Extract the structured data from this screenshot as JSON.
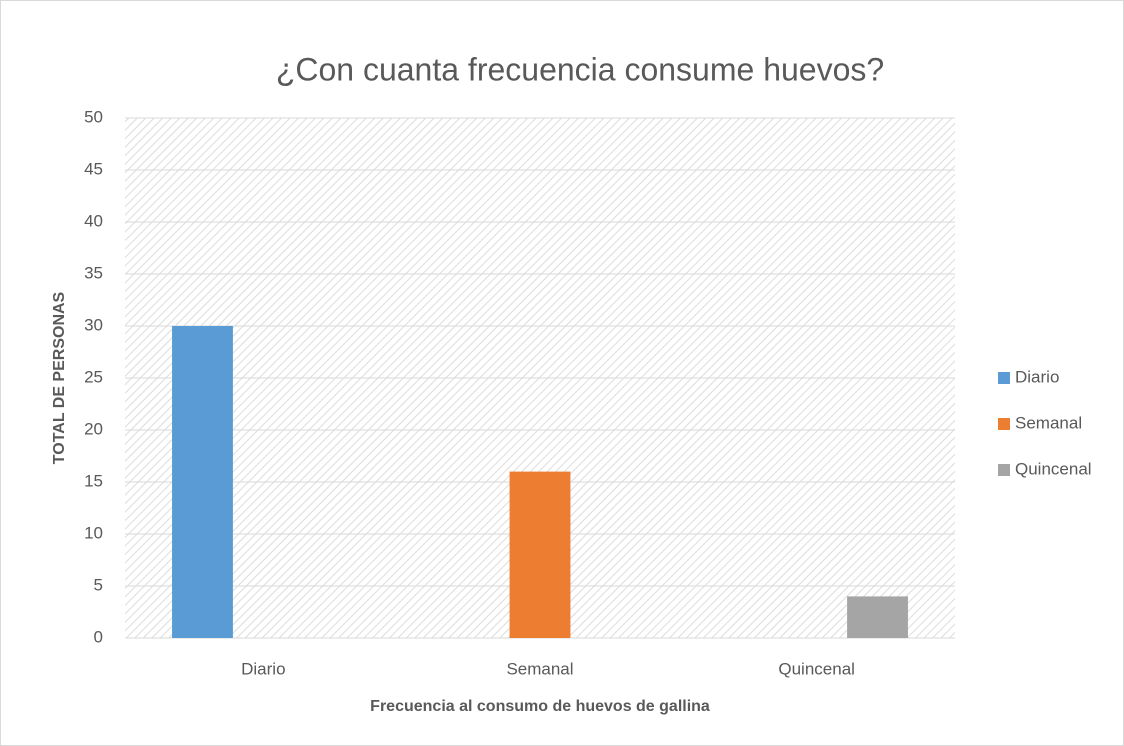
{
  "chart_data": {
    "type": "bar",
    "title": "¿Con cuanta frecuencia consume huevos?",
    "x_label": "Frecuencia al consumo de huevos de gallina",
    "y_label": "TOTAL DE PERSONAS",
    "categories": [
      "Diario",
      "Semanal",
      "Quincenal"
    ],
    "series": [
      {
        "name": "Diario",
        "color": "#5b9bd5",
        "values": [
          30,
          null,
          null
        ]
      },
      {
        "name": "Semanal",
        "color": "#ed7d31",
        "values": [
          null,
          16,
          null
        ]
      },
      {
        "name": "Quincenal",
        "color": "#a5a5a5",
        "values": [
          null,
          null,
          4
        ]
      }
    ],
    "ylim": [
      0,
      50
    ],
    "yticks": [
      0,
      5,
      10,
      15,
      20,
      25,
      30,
      35,
      40,
      45,
      50
    ],
    "grid": true,
    "legend": "right"
  }
}
